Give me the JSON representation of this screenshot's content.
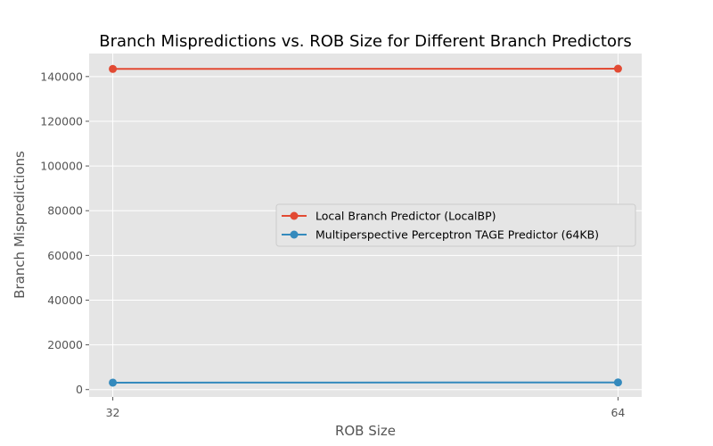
{
  "chart_data": {
    "type": "line",
    "title": "Branch Mispredictions vs. ROB Size for Different Branch Predictors",
    "xlabel": "ROB Size",
    "ylabel": "Branch Mispredictions",
    "x": [
      32,
      64
    ],
    "x_ticks": [
      "32",
      "64"
    ],
    "xlim": [
      30.5,
      65.5
    ],
    "ylim": [
      -3300,
      150300
    ],
    "y_ticks": [
      0,
      20000,
      40000,
      60000,
      80000,
      100000,
      120000,
      140000
    ],
    "y_tick_labels": [
      "0",
      "20000",
      "40000",
      "60000",
      "80000",
      "100000",
      "120000",
      "140000"
    ],
    "grid": true,
    "legend_position": "center-right",
    "series": [
      {
        "name": "Local Branch Predictor (LocalBP)",
        "values": [
          143400,
          143500
        ],
        "color": "#E24A33"
      },
      {
        "name": "Multiperspective Perceptron TAGE Predictor (64KB)",
        "values": [
          3100,
          3200
        ],
        "color": "#348ABD"
      }
    ]
  }
}
